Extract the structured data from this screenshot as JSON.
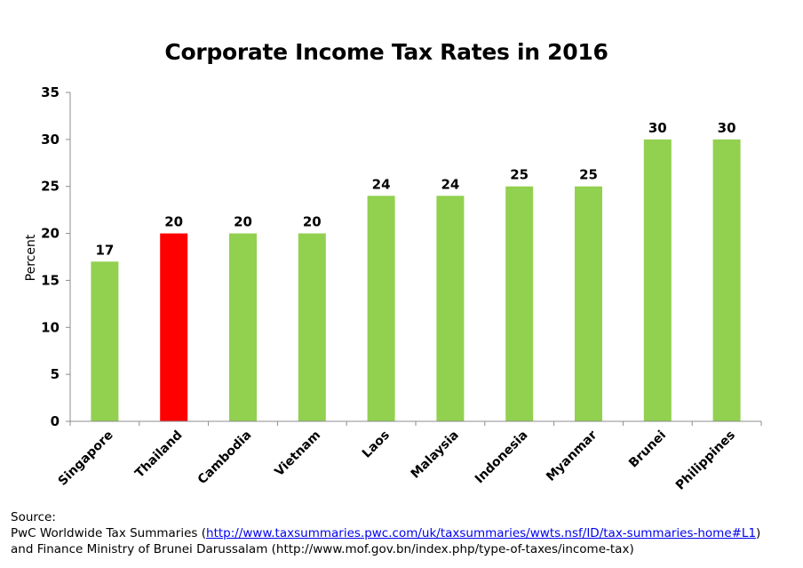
{
  "chart_data": {
    "type": "bar",
    "title": "Corporate Income Tax Rates in 2016",
    "ylabel": "Percent",
    "xlabel": "",
    "ylim": [
      0,
      35
    ],
    "yticks": [
      0,
      5,
      10,
      15,
      20,
      25,
      30,
      35
    ],
    "categories": [
      "Singapore",
      "Thailand",
      "Cambodia",
      "Vietnam",
      "Laos",
      "Malaysia",
      "Indonesia",
      "Myanmar",
      "Brunei",
      "Philippines"
    ],
    "values": [
      17,
      20,
      20,
      20,
      24,
      24,
      25,
      25,
      30,
      30
    ],
    "grid": false,
    "legend": "none",
    "colors": {
      "default": "#92d050",
      "highlight": "#ff0000",
      "highlight_category": "Thailand"
    }
  },
  "source": {
    "heading": "Source:",
    "line1_prefix": "PwC Worldwide  Tax Summaries (",
    "line1_link": "http://www.taxsummaries.pwc.com/uk/taxsummaries/wwts.nsf/ID/tax-summaries-home#L1",
    "line1_suffix": ")",
    "line2": "and Finance Ministry of Brunei Darussalam (http://www.mof.gov.bn/index.php/type-of-taxes/income-tax)"
  }
}
